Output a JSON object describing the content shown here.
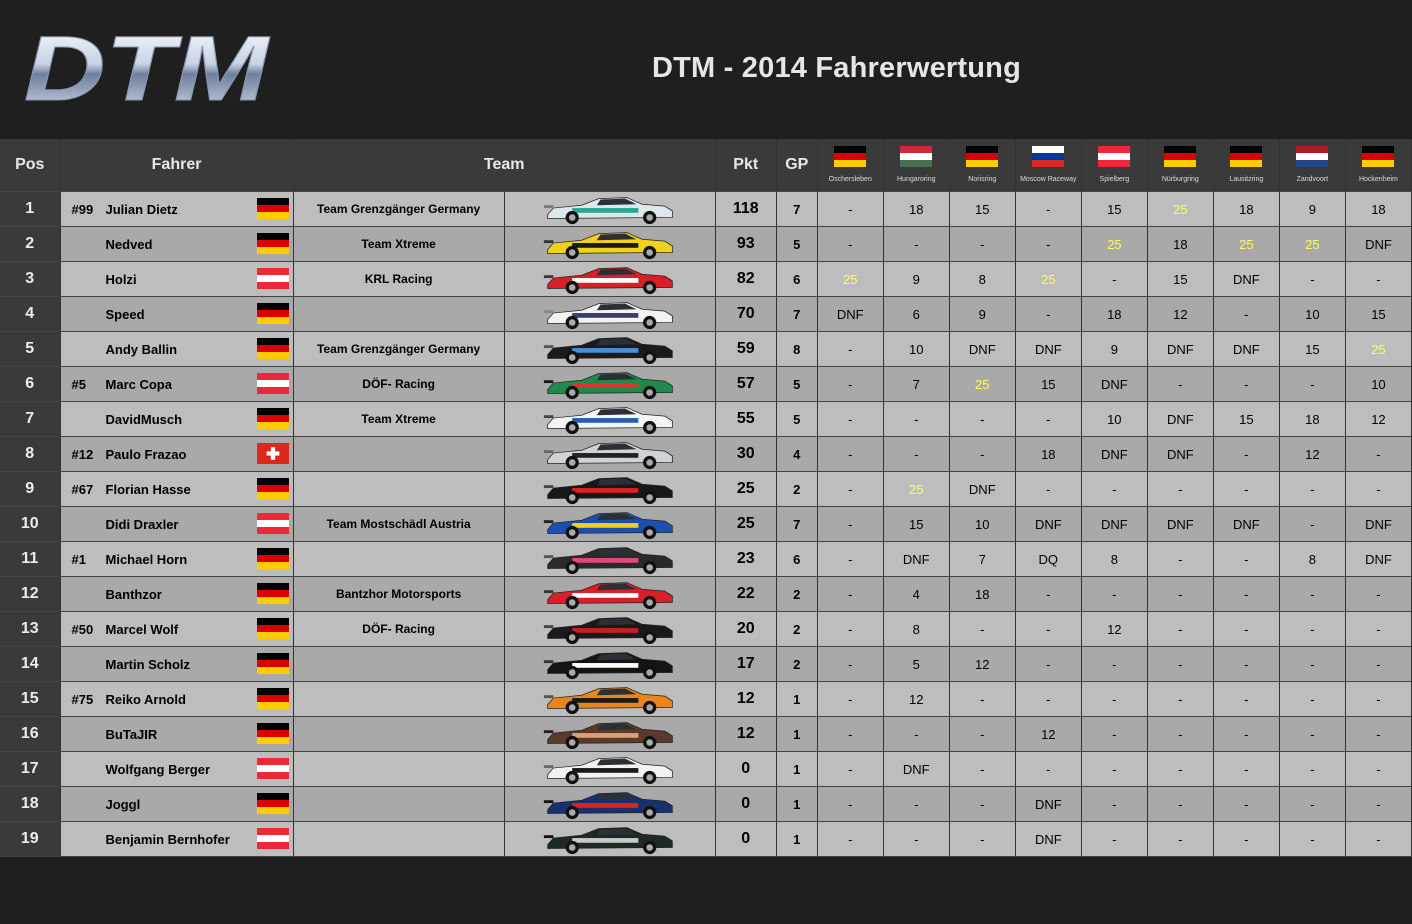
{
  "header": {
    "logo_text": "DTM",
    "title": "DTM - 2014 Fahrerwertung"
  },
  "columns": {
    "pos": "Pos",
    "driver": "Fahrer",
    "team": "Team",
    "points": "Pkt",
    "gp": "GP"
  },
  "races": [
    {
      "name": "Oschersleben",
      "flag": "germany"
    },
    {
      "name": "Hungaroring",
      "flag": "hungary"
    },
    {
      "name": "Norisring",
      "flag": "germany"
    },
    {
      "name": "Moscow Raceway",
      "flag": "russia"
    },
    {
      "name": "Spielberg",
      "flag": "austria"
    },
    {
      "name": "Nürburgring",
      "flag": "germany"
    },
    {
      "name": "Lausitzring",
      "flag": "germany"
    },
    {
      "name": "Zandvoort",
      "flag": "netherlands"
    },
    {
      "name": "Hockenheim",
      "flag": "germany"
    }
  ],
  "colors": {
    "win": "#ffff55",
    "germany": [
      "#000000",
      "#dd0000",
      "#ffcc00"
    ],
    "austria": [
      "#ed2939",
      "#ffffff",
      "#ed2939"
    ],
    "hungary": [
      "#ce2939",
      "#ffffff",
      "#477050"
    ],
    "russia": [
      "#ffffff",
      "#0039a6",
      "#d52b1e"
    ],
    "netherlands": [
      "#ae1c28",
      "#ffffff",
      "#21468b"
    ]
  },
  "rows": [
    {
      "pos": "1",
      "num": "#99",
      "name": "Julian Dietz",
      "flag": "germany",
      "team": "Team Grenzgänger Germany",
      "car": {
        "body": "#dfe7ea",
        "accent": "#2aa79a",
        "dark": "#6e7c85"
      },
      "pkt": "118",
      "gp": "7",
      "results": [
        "-",
        "18",
        "15",
        "-",
        "15",
        "25",
        "18",
        "9",
        "18"
      ]
    },
    {
      "pos": "2",
      "num": "",
      "name": "Nedved",
      "flag": "germany",
      "team": "Team Xtreme",
      "car": {
        "body": "#f0d21a",
        "accent": "#1a1a1a",
        "dark": "#333"
      },
      "pkt": "93",
      "gp": "5",
      "results": [
        "-",
        "-",
        "-",
        "-",
        "25",
        "18",
        "25",
        "25",
        "DNF"
      ]
    },
    {
      "pos": "3",
      "num": "",
      "name": "Holzi",
      "flag": "austria",
      "team": "KRL Racing",
      "car": {
        "body": "#d61f26",
        "accent": "#ffffff",
        "dark": "#3a3a3a"
      },
      "pkt": "82",
      "gp": "6",
      "results": [
        "25",
        "9",
        "8",
        "25",
        "-",
        "15",
        "DNF",
        "-",
        "-"
      ]
    },
    {
      "pos": "4",
      "num": "",
      "name": "Speed",
      "flag": "germany",
      "team": "",
      "car": {
        "body": "#f2f2f2",
        "accent": "#3b3b6e",
        "dark": "#888"
      },
      "pkt": "70",
      "gp": "7",
      "results": [
        "DNF",
        "6",
        "9",
        "-",
        "18",
        "12",
        "-",
        "10",
        "15"
      ]
    },
    {
      "pos": "5",
      "num": "",
      "name": "Andy Ballin",
      "flag": "germany",
      "team": "Team Grenzgänger Germany",
      "car": {
        "body": "#1b1b1b",
        "accent": "#4a8fd6",
        "dark": "#555"
      },
      "pkt": "59",
      "gp": "8",
      "results": [
        "-",
        "10",
        "DNF",
        "DNF",
        "9",
        "DNF",
        "DNF",
        "15",
        "25"
      ]
    },
    {
      "pos": "6",
      "num": "#5",
      "name": "Marc Copa",
      "flag": "austria",
      "team": "DÖF- Racing",
      "car": {
        "body": "#1f8a4c",
        "accent": "#d33",
        "dark": "#1a1a1a"
      },
      "pkt": "57",
      "gp": "5",
      "results": [
        "-",
        "7",
        "25",
        "15",
        "DNF",
        "-",
        "-",
        "-",
        "10"
      ]
    },
    {
      "pos": "7",
      "num": "",
      "name": "DavidMusch",
      "flag": "germany",
      "team": "Team Xtreme",
      "car": {
        "body": "#f4f4f4",
        "accent": "#2a5fb0",
        "dark": "#444"
      },
      "pkt": "55",
      "gp": "5",
      "results": [
        "-",
        "-",
        "-",
        "-",
        "10",
        "DNF",
        "15",
        "18",
        "12"
      ]
    },
    {
      "pos": "8",
      "num": "#12",
      "name": "Paulo Frazao",
      "flag": "switzerland",
      "team": "",
      "car": {
        "body": "#cfd2d6",
        "accent": "#222",
        "dark": "#666"
      },
      "pkt": "30",
      "gp": "4",
      "results": [
        "-",
        "-",
        "-",
        "18",
        "DNF",
        "DNF",
        "-",
        "12",
        "-"
      ]
    },
    {
      "pos": "9",
      "num": "#67",
      "name": "Florian Hasse",
      "flag": "germany",
      "team": "",
      "car": {
        "body": "#181818",
        "accent": "#d22",
        "dark": "#444"
      },
      "pkt": "25",
      "gp": "2",
      "results": [
        "-",
        "25",
        "DNF",
        "-",
        "-",
        "-",
        "-",
        "-",
        "-"
      ]
    },
    {
      "pos": "10",
      "num": "",
      "name": "Didi Draxler",
      "flag": "austria",
      "team": "Team Mostschädl Austria",
      "car": {
        "body": "#1d4fb3",
        "accent": "#f2d21a",
        "dark": "#222"
      },
      "pkt": "25",
      "gp": "7",
      "results": [
        "-",
        "15",
        "10",
        "DNF",
        "DNF",
        "DNF",
        "DNF",
        "-",
        "DNF"
      ]
    },
    {
      "pos": "11",
      "num": "#1",
      "name": "Michael Horn",
      "flag": "germany",
      "team": "",
      "car": {
        "body": "#2a2a2a",
        "accent": "#e04a7a",
        "dark": "#555"
      },
      "pkt": "23",
      "gp": "6",
      "results": [
        "-",
        "DNF",
        "7",
        "DQ",
        "8",
        "-",
        "-",
        "8",
        "DNF"
      ]
    },
    {
      "pos": "12",
      "num": "",
      "name": "Banthzor",
      "flag": "germany",
      "team": "Bantzhor Motorsports",
      "car": {
        "body": "#d8202a",
        "accent": "#ffffff",
        "dark": "#333"
      },
      "pkt": "22",
      "gp": "2",
      "results": [
        "-",
        "4",
        "18",
        "-",
        "-",
        "-",
        "-",
        "-",
        "-"
      ]
    },
    {
      "pos": "13",
      "num": "#50",
      "name": "Marcel Wolf",
      "flag": "germany",
      "team": "DÖF- Racing",
      "car": {
        "body": "#1a1a1a",
        "accent": "#c81e2a",
        "dark": "#444"
      },
      "pkt": "20",
      "gp": "2",
      "results": [
        "-",
        "8",
        "-",
        "-",
        "12",
        "-",
        "-",
        "-",
        "-"
      ]
    },
    {
      "pos": "14",
      "num": "",
      "name": "Martin Scholz",
      "flag": "germany",
      "team": "",
      "car": {
        "body": "#141414",
        "accent": "#ffffff",
        "dark": "#333"
      },
      "pkt": "17",
      "gp": "2",
      "results": [
        "-",
        "5",
        "12",
        "-",
        "-",
        "-",
        "-",
        "-",
        "-"
      ]
    },
    {
      "pos": "15",
      "num": "#75",
      "name": "Reiko Arnold",
      "flag": "germany",
      "team": "",
      "car": {
        "body": "#e8861c",
        "accent": "#1a1a1a",
        "dark": "#555"
      },
      "pkt": "12",
      "gp": "1",
      "results": [
        "-",
        "12",
        "-",
        "-",
        "-",
        "-",
        "-",
        "-",
        "-"
      ]
    },
    {
      "pos": "16",
      "num": "",
      "name": "BuTaJIR",
      "flag": "germany",
      "team": "",
      "car": {
        "body": "#5a3a2a",
        "accent": "#d9a07a",
        "dark": "#222"
      },
      "pkt": "12",
      "gp": "1",
      "results": [
        "-",
        "-",
        "-",
        "12",
        "-",
        "-",
        "-",
        "-",
        "-"
      ]
    },
    {
      "pos": "17",
      "num": "",
      "name": "Wolfgang Berger",
      "flag": "austria",
      "team": "",
      "car": {
        "body": "#f2f2f2",
        "accent": "#1a1a1a",
        "dark": "#666"
      },
      "pkt": "0",
      "gp": "1",
      "results": [
        "-",
        "DNF",
        "-",
        "-",
        "-",
        "-",
        "-",
        "-",
        "-"
      ]
    },
    {
      "pos": "18",
      "num": "",
      "name": "Joggl",
      "flag": "germany",
      "team": "",
      "car": {
        "body": "#17306e",
        "accent": "#d22",
        "dark": "#111"
      },
      "pkt": "0",
      "gp": "1",
      "results": [
        "-",
        "-",
        "-",
        "DNF",
        "-",
        "-",
        "-",
        "-",
        "-"
      ]
    },
    {
      "pos": "19",
      "num": "",
      "name": "Benjamin Bernhofer",
      "flag": "austria",
      "team": "",
      "car": {
        "body": "#1c2a22",
        "accent": "#c8c8c8",
        "dark": "#111"
      },
      "pkt": "0",
      "gp": "1",
      "results": [
        "-",
        "-",
        "-",
        "DNF",
        "-",
        "-",
        "-",
        "-",
        "-"
      ]
    }
  ]
}
